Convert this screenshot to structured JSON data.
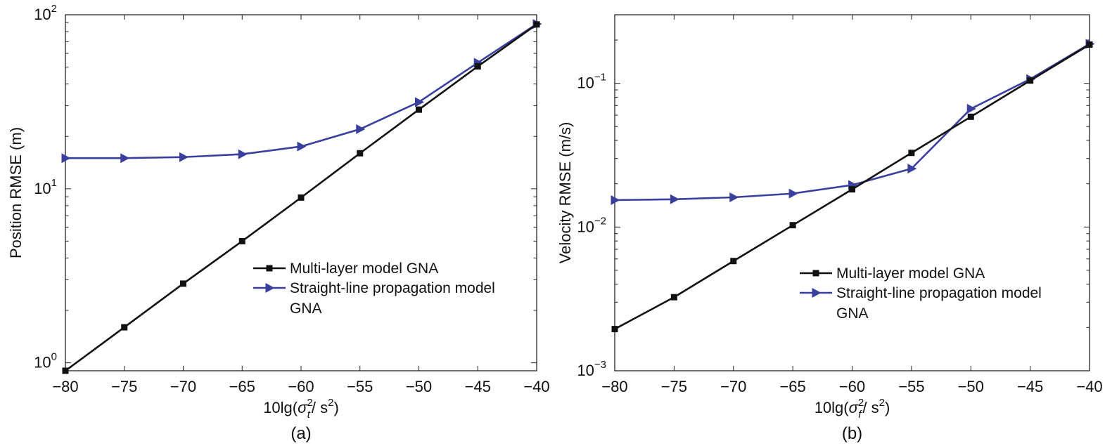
{
  "chart_data": [
    {
      "type": "line",
      "panel_label": "(a)",
      "xlabel": {
        "prefix": "10lg(",
        "sym": "σ",
        "sup": "2",
        "sub": "t",
        "suffix": "/ s",
        "suffix_sup": "2",
        "close": ")"
      },
      "ylabel": "Position RMSE (m)",
      "x": [
        -80,
        -75,
        -70,
        -65,
        -60,
        -55,
        -50,
        -45,
        -40
      ],
      "xlim": [
        -80,
        -40
      ],
      "xticks": [
        "−80",
        "−75",
        "−70",
        "−65",
        "−60",
        "−55",
        "−50",
        "−45",
        "−40"
      ],
      "yscale": "log",
      "ylim": [
        0.9,
        100
      ],
      "yticks": [
        {
          "value": 1,
          "base": "10",
          "exp": "0"
        },
        {
          "value": 10,
          "base": "10",
          "exp": "1"
        },
        {
          "value": 100,
          "base": "10",
          "exp": "2"
        }
      ],
      "grid": false,
      "legend_position": "center-right",
      "series": [
        {
          "name": "Multi-layer model GNA",
          "color": "#111111",
          "marker": "square",
          "values": [
            0.9,
            1.6,
            2.85,
            5.0,
            8.9,
            16.0,
            28.5,
            50.5,
            88.0
          ]
        },
        {
          "name_lines": [
            "Straight-line propagation model",
            "GNA"
          ],
          "color": "#3a3f9e",
          "marker": "triangle-right",
          "values": [
            15.0,
            15.0,
            15.2,
            15.8,
            17.5,
            22.0,
            31.5,
            53.0,
            88.5
          ]
        }
      ]
    },
    {
      "type": "line",
      "panel_label": "(b)",
      "xlabel": {
        "prefix": "10lg(",
        "sym": "σ",
        "sup": "2",
        "sub": "f",
        "suffix": "/ s",
        "suffix_sup": "2",
        "close": ")"
      },
      "ylabel": "Velocity RMSE (m/s)",
      "x": [
        -80,
        -75,
        -70,
        -65,
        -60,
        -55,
        -50,
        -45,
        -40
      ],
      "xlim": [
        -80,
        -40
      ],
      "xticks": [
        "−80",
        "−75",
        "−70",
        "−65",
        "−60",
        "−55",
        "−50",
        "−45",
        "−40"
      ],
      "yscale": "log",
      "ylim": [
        0.001,
        0.3
      ],
      "yticks": [
        {
          "value": 0.001,
          "base": "10",
          "exp": "−3"
        },
        {
          "value": 0.01,
          "base": "10",
          "exp": "−2"
        },
        {
          "value": 0.1,
          "base": "10",
          "exp": "−1"
        }
      ],
      "grid": false,
      "legend_position": "center-right",
      "series": [
        {
          "name": "Multi-layer model GNA",
          "color": "#111111",
          "marker": "square",
          "values": [
            0.00195,
            0.00325,
            0.0058,
            0.0103,
            0.0183,
            0.0328,
            0.0585,
            0.1045,
            0.186
          ]
        },
        {
          "name_lines": [
            "Straight-line propagation model",
            "GNA"
          ],
          "color": "#3a3f9e",
          "marker": "triangle-right",
          "values": [
            0.0154,
            0.0156,
            0.0161,
            0.0171,
            0.0196,
            0.0255,
            0.0665,
            0.107,
            0.188
          ]
        }
      ]
    }
  ]
}
